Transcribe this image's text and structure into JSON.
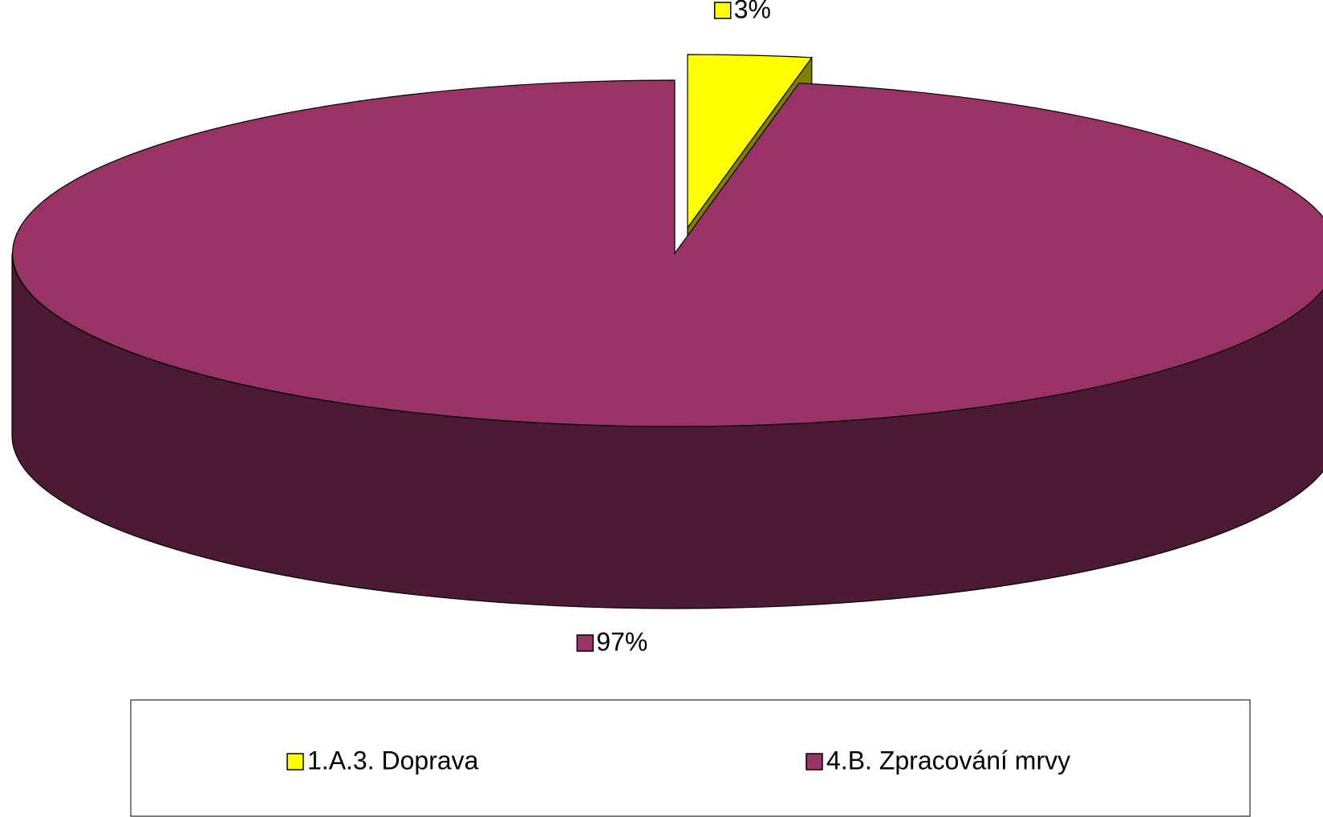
{
  "chart_data": {
    "type": "pie",
    "categories": [
      "1.A.3. Doprava",
      "4.B. Zpracování mrvy"
    ],
    "values": [
      3,
      97
    ],
    "value_labels": [
      "3%",
      "97%"
    ],
    "colors": [
      "#ffff00",
      "#993366"
    ]
  }
}
